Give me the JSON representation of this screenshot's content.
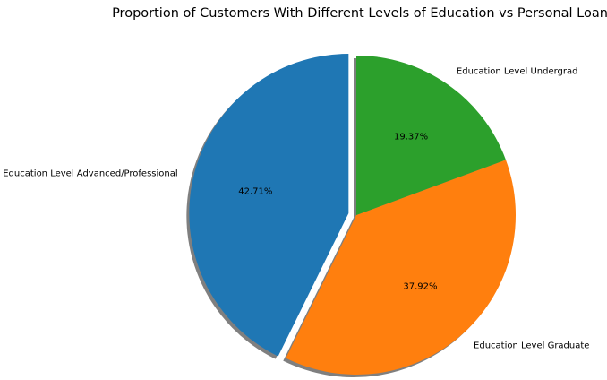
{
  "chart_data": {
    "type": "pie",
    "title": "Proportion of Customers With Different Levels of Education vs Personal Loan",
    "categories": [
      "Education Level  Advanced/Professional",
      "Education Level Graduate",
      "Education Level Undergrad"
    ],
    "values": [
      42.71,
      37.92,
      19.37
    ],
    "value_labels": [
      "42.71%",
      "37.92%",
      "19.37%"
    ],
    "colors": [
      "#1f77b4",
      "#ff7f0e",
      "#2ca02c"
    ],
    "start_angle_deg": 90,
    "direction": "counterclockwise",
    "explode": [
      0.05,
      0,
      0
    ],
    "shadow": true,
    "legend": "none"
  }
}
